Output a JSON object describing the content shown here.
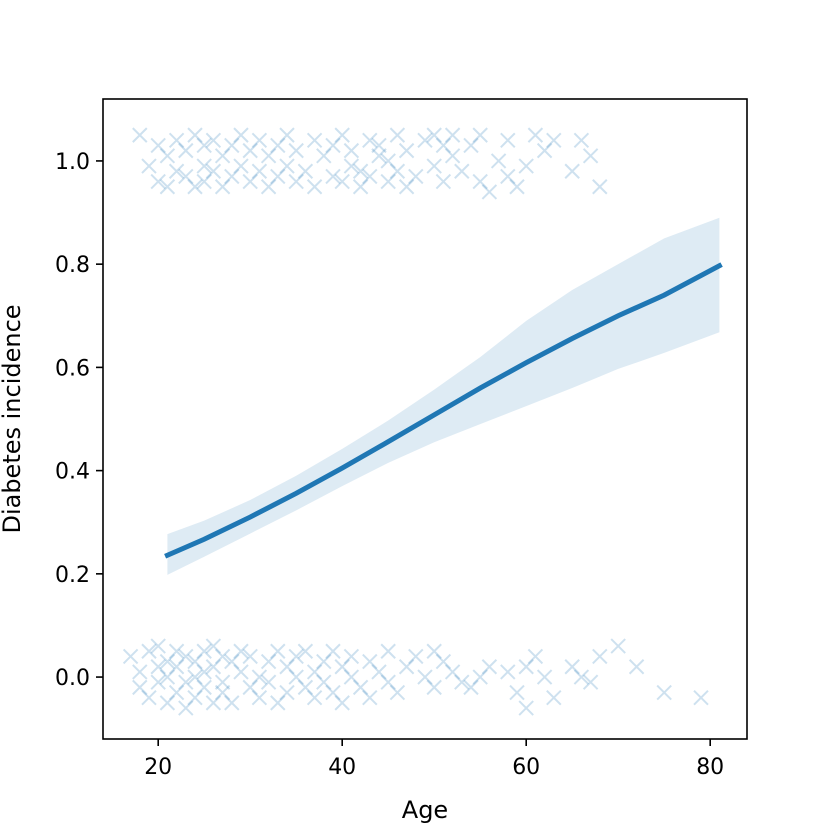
{
  "chart_data": {
    "type": "scatter",
    "title": "",
    "xlabel": "Age",
    "ylabel": "Diabetes incidence",
    "xlim": [
      14,
      84
    ],
    "ylim": [
      -0.12,
      1.12
    ],
    "xticks": [
      20,
      40,
      60,
      80
    ],
    "xtick_labels": [
      "20",
      "40",
      "60",
      "80"
    ],
    "yticks": [
      0.0,
      0.2,
      0.4,
      0.6,
      0.8,
      1.0
    ],
    "ytick_labels": [
      "0.0",
      "0.2",
      "0.4",
      "0.6",
      "0.8",
      "1.0"
    ],
    "grid": false,
    "colors": {
      "series": "#1f77b4",
      "band": "#1f77b4",
      "axis": "#000000"
    },
    "fit_curve": {
      "x": [
        21,
        25,
        30,
        35,
        40,
        45,
        50,
        55,
        60,
        65,
        70,
        75,
        81
      ],
      "y": [
        0.236,
        0.267,
        0.31,
        0.356,
        0.405,
        0.456,
        0.508,
        0.56,
        0.609,
        0.656,
        0.7,
        0.74,
        0.797
      ],
      "lower": [
        0.198,
        0.233,
        0.278,
        0.323,
        0.37,
        0.415,
        0.455,
        0.49,
        0.525,
        0.56,
        0.597,
        0.628,
        0.668
      ],
      "upper": [
        0.277,
        0.303,
        0.343,
        0.39,
        0.442,
        0.497,
        0.557,
        0.62,
        0.69,
        0.75,
        0.8,
        0.85,
        0.89
      ]
    },
    "scatter_points": {
      "outcome_1": {
        "x": [
          18,
          19,
          20,
          20,
          21,
          21,
          22,
          22,
          23,
          23,
          24,
          24,
          25,
          25,
          25,
          26,
          26,
          27,
          27,
          28,
          28,
          29,
          29,
          30,
          30,
          31,
          31,
          32,
          32,
          33,
          33,
          34,
          34,
          35,
          35,
          36,
          37,
          37,
          38,
          39,
          39,
          40,
          40,
          41,
          41,
          42,
          42,
          43,
          43,
          44,
          44,
          45,
          45,
          46,
          46,
          47,
          47,
          48,
          49,
          50,
          50,
          51,
          51,
          52,
          52,
          53,
          54,
          55,
          55,
          56,
          57,
          58,
          58,
          59,
          60,
          61,
          62,
          63,
          65,
          66,
          67,
          68
        ],
        "y": [
          1.05,
          0.99,
          1.03,
          0.96,
          1.01,
          0.95,
          1.04,
          0.98,
          0.97,
          1.02,
          1.05,
          0.95,
          0.99,
          1.03,
          0.96,
          1.04,
          0.98,
          0.95,
          1.01,
          1.03,
          0.97,
          0.99,
          1.05,
          0.96,
          1.02,
          1.04,
          0.98,
          0.95,
          1.01,
          1.03,
          0.97,
          1.05,
          0.99,
          0.96,
          1.02,
          0.98,
          1.04,
          0.95,
          1.01,
          0.97,
          1.03,
          0.96,
          1.05,
          0.99,
          1.02,
          0.95,
          0.98,
          1.04,
          0.97,
          1.01,
          1.03,
          0.96,
          1.0,
          1.05,
          0.98,
          0.95,
          1.02,
          0.97,
          1.04,
          1.05,
          0.99,
          0.96,
          1.03,
          1.05,
          1.01,
          0.98,
          1.03,
          0.96,
          1.05,
          0.94,
          1.0,
          1.04,
          0.97,
          0.95,
          0.99,
          1.05,
          1.02,
          1.04,
          0.98,
          1.04,
          1.01,
          0.95
        ]
      },
      "outcome_0": {
        "x": [
          17,
          18,
          18,
          19,
          19,
          20,
          20,
          20,
          21,
          21,
          21,
          22,
          22,
          22,
          23,
          23,
          23,
          24,
          24,
          24,
          25,
          25,
          25,
          26,
          26,
          26,
          27,
          27,
          27,
          28,
          28,
          29,
          29,
          30,
          30,
          31,
          31,
          32,
          32,
          33,
          33,
          34,
          34,
          35,
          35,
          36,
          36,
          37,
          37,
          38,
          38,
          39,
          39,
          40,
          40,
          41,
          41,
          42,
          43,
          43,
          44,
          45,
          45,
          46,
          47,
          48,
          49,
          50,
          50,
          51,
          52,
          53,
          54,
          55,
          56,
          58,
          59,
          60,
          60,
          61,
          62,
          63,
          65,
          66,
          67,
          68,
          70,
          72,
          75,
          79
        ],
        "y": [
          0.04,
          -0.02,
          0.01,
          0.05,
          -0.04,
          0.02,
          -0.01,
          0.06,
          0.03,
          -0.05,
          0.0,
          0.05,
          -0.03,
          0.02,
          -0.01,
          0.04,
          -0.06,
          0.03,
          0.0,
          -0.04,
          0.05,
          -0.02,
          0.01,
          0.06,
          -0.05,
          0.02,
          -0.01,
          0.04,
          -0.03,
          0.03,
          -0.05,
          0.01,
          0.05,
          -0.02,
          0.04,
          0.0,
          -0.04,
          0.03,
          -0.01,
          0.05,
          -0.05,
          0.02,
          -0.03,
          0.04,
          0.0,
          -0.02,
          0.05,
          0.01,
          -0.04,
          0.03,
          -0.01,
          0.05,
          -0.03,
          0.02,
          -0.05,
          0.04,
          0.0,
          -0.02,
          0.03,
          -0.04,
          0.01,
          0.05,
          -0.01,
          -0.03,
          0.02,
          0.04,
          0.0,
          0.05,
          -0.02,
          0.03,
          0.01,
          -0.01,
          -0.02,
          0.0,
          0.02,
          0.01,
          -0.03,
          0.02,
          -0.06,
          0.04,
          0.0,
          -0.04,
          0.02,
          0.0,
          -0.01,
          0.04,
          0.06,
          0.02,
          -0.03,
          -0.04
        ]
      }
    }
  }
}
